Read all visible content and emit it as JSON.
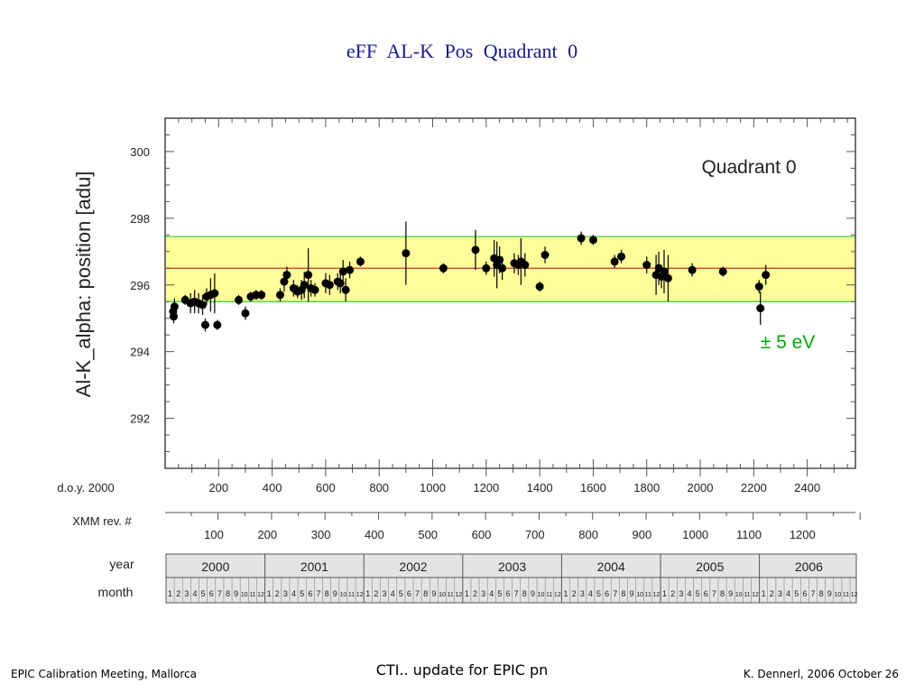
{
  "slide": {
    "title": "eFF   AL-K   Pos   Quadrant 0",
    "footer_left": "EPIC Calibration Meeting, Mallorca",
    "footer_center": "CTI.. update for EPIC pn",
    "footer_right": "K. Dennerl, 2006 October 26"
  },
  "chart_data": {
    "type": "scatter",
    "title": "Quadrant 0",
    "ylabel": "Al-K_alpha:  position  [adu]",
    "ylim": [
      290.5,
      301
    ],
    "xlim": [
      0,
      2580
    ],
    "y_ticks": [
      292,
      294,
      296,
      298,
      300
    ],
    "band": {
      "center": 296.5,
      "low": 295.5,
      "high": 297.45,
      "label": "± 5 eV",
      "fill": "#ffff99",
      "edge_color": "#33cc33",
      "center_color": "#cc3333",
      "label_color": "#00aa00"
    },
    "x_axes": [
      {
        "name": "d.o.y. 2000",
        "ticks": [
          200,
          400,
          600,
          800,
          1000,
          1200,
          1400,
          1600,
          1800,
          2000,
          2200,
          2400
        ]
      },
      {
        "name": "XMM rev. #",
        "ticks": [
          "100",
          "200",
          "300",
          "400",
          "500",
          "600",
          "700",
          "800",
          "900",
          "1000",
          "1100",
          "1200"
        ]
      }
    ],
    "year_row": {
      "label": "year",
      "years": [
        "2000",
        "2001",
        "2002",
        "2003",
        "2004",
        "2005",
        "2006"
      ]
    },
    "month_row": {
      "label": "month",
      "months": [
        "1",
        "2",
        "3",
        "4",
        "5",
        "6",
        "7",
        "8",
        "9",
        "10",
        "11",
        "12"
      ]
    },
    "series": [
      {
        "points": [
          {
            "x": 30,
            "y": 295.2,
            "e": 0.25
          },
          {
            "x": 32,
            "y": 295.05,
            "e": 0.2
          },
          {
            "x": 35,
            "y": 295.35,
            "e": 0.25
          },
          {
            "x": 75,
            "y": 295.55,
            "e": 0.15
          },
          {
            "x": 95,
            "y": 295.45,
            "e": 0.3
          },
          {
            "x": 110,
            "y": 295.5,
            "e": 0.35
          },
          {
            "x": 125,
            "y": 295.45,
            "e": 0.3
          },
          {
            "x": 140,
            "y": 295.4,
            "e": 0.3
          },
          {
            "x": 150,
            "y": 294.8,
            "e": 0.2
          },
          {
            "x": 155,
            "y": 295.65,
            "e": 0.25
          },
          {
            "x": 170,
            "y": 295.7,
            "e": 0.5
          },
          {
            "x": 185,
            "y": 295.75,
            "e": 0.6
          },
          {
            "x": 195,
            "y": 294.8,
            "e": 0.15
          },
          {
            "x": 275,
            "y": 295.55,
            "e": 0.15
          },
          {
            "x": 300,
            "y": 295.15,
            "e": 0.2
          },
          {
            "x": 320,
            "y": 295.65,
            "e": 0.15
          },
          {
            "x": 340,
            "y": 295.7,
            "e": 0.15
          },
          {
            "x": 360,
            "y": 295.7,
            "e": 0.15
          },
          {
            "x": 430,
            "y": 295.7,
            "e": 0.2
          },
          {
            "x": 445,
            "y": 296.1,
            "e": 0.3
          },
          {
            "x": 455,
            "y": 296.3,
            "e": 0.25
          },
          {
            "x": 480,
            "y": 295.9,
            "e": 0.25
          },
          {
            "x": 495,
            "y": 295.8,
            "e": 0.2
          },
          {
            "x": 510,
            "y": 295.85,
            "e": 0.3
          },
          {
            "x": 520,
            "y": 296.0,
            "e": 0.4
          },
          {
            "x": 535,
            "y": 296.3,
            "e": 0.8
          },
          {
            "x": 545,
            "y": 295.9,
            "e": 0.25
          },
          {
            "x": 560,
            "y": 295.85,
            "e": 0.2
          },
          {
            "x": 600,
            "y": 296.05,
            "e": 0.3
          },
          {
            "x": 615,
            "y": 296.0,
            "e": 0.3
          },
          {
            "x": 645,
            "y": 296.1,
            "e": 0.25
          },
          {
            "x": 655,
            "y": 296.05,
            "e": 0.3
          },
          {
            "x": 665,
            "y": 296.4,
            "e": 0.35
          },
          {
            "x": 675,
            "y": 295.85,
            "e": 0.35
          },
          {
            "x": 690,
            "y": 296.45,
            "e": 0.25
          },
          {
            "x": 730,
            "y": 296.7,
            "e": 0.15
          },
          {
            "x": 900,
            "y": 296.95,
            "e": 0.95
          },
          {
            "x": 1040,
            "y": 296.5,
            "e": 0.15
          },
          {
            "x": 1160,
            "y": 297.05,
            "e": 0.6
          },
          {
            "x": 1200,
            "y": 296.5,
            "e": 0.2
          },
          {
            "x": 1230,
            "y": 296.8,
            "e": 0.55
          },
          {
            "x": 1240,
            "y": 296.6,
            "e": 0.7
          },
          {
            "x": 1250,
            "y": 296.75,
            "e": 0.4
          },
          {
            "x": 1260,
            "y": 296.5,
            "e": 0.35
          },
          {
            "x": 1305,
            "y": 296.65,
            "e": 0.3
          },
          {
            "x": 1320,
            "y": 296.6,
            "e": 0.3
          },
          {
            "x": 1330,
            "y": 296.7,
            "e": 0.7
          },
          {
            "x": 1345,
            "y": 296.6,
            "e": 0.35
          },
          {
            "x": 1400,
            "y": 295.95,
            "e": 0.15
          },
          {
            "x": 1420,
            "y": 296.9,
            "e": 0.25
          },
          {
            "x": 1555,
            "y": 297.4,
            "e": 0.2
          },
          {
            "x": 1600,
            "y": 297.35,
            "e": 0.15
          },
          {
            "x": 1680,
            "y": 296.7,
            "e": 0.2
          },
          {
            "x": 1705,
            "y": 296.85,
            "e": 0.2
          },
          {
            "x": 1800,
            "y": 296.6,
            "e": 0.25
          },
          {
            "x": 1835,
            "y": 296.3,
            "e": 0.6
          },
          {
            "x": 1845,
            "y": 296.5,
            "e": 0.5
          },
          {
            "x": 1855,
            "y": 296.25,
            "e": 0.35
          },
          {
            "x": 1865,
            "y": 296.4,
            "e": 0.65
          },
          {
            "x": 1880,
            "y": 296.2,
            "e": 0.7
          },
          {
            "x": 1970,
            "y": 296.45,
            "e": 0.2
          },
          {
            "x": 2085,
            "y": 296.4,
            "e": 0.15
          },
          {
            "x": 2220,
            "y": 295.95,
            "e": 0.2
          },
          {
            "x": 2225,
            "y": 295.3,
            "e": 0.5
          },
          {
            "x": 2245,
            "y": 296.3,
            "e": 0.3
          }
        ]
      }
    ]
  }
}
